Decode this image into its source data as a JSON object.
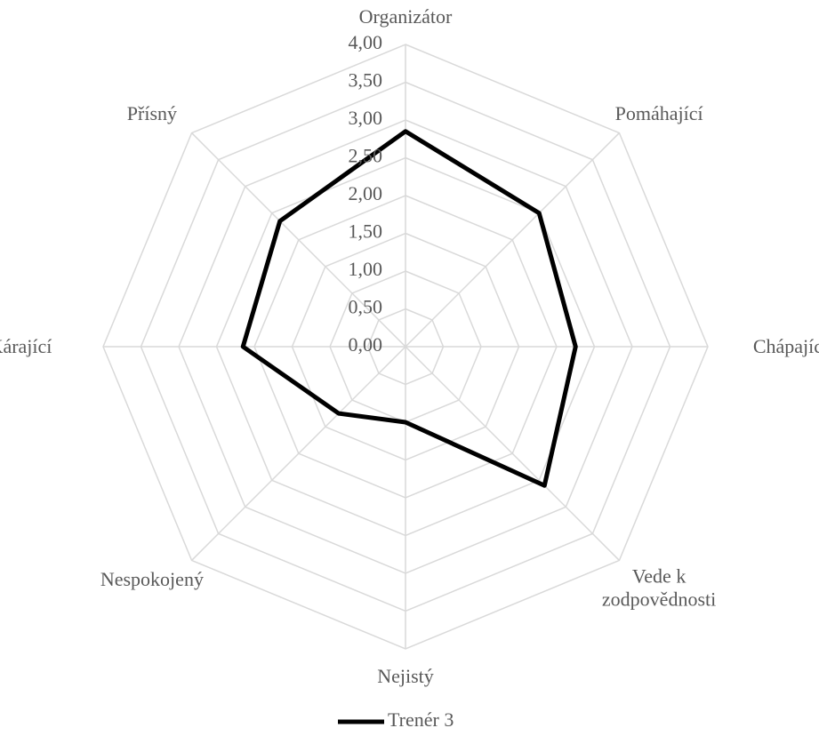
{
  "chart_data": {
    "type": "radar",
    "categories": [
      "Organizátor",
      "Pomáhající",
      "Chápající",
      "Vede k zodpovědnosti",
      "Nejistý",
      "Nespokojený",
      "Kárající",
      "Přísný"
    ],
    "series": [
      {
        "name": "Trenér 3",
        "color": "#000000",
        "values": [
          2.85,
          2.5,
          2.25,
          2.6,
          1.0,
          1.25,
          2.15,
          2.35
        ]
      }
    ],
    "ylim": [
      0,
      4
    ],
    "yticks": [
      {
        "value": 0,
        "label": "0,00"
      },
      {
        "value": 0.5,
        "label": "0,50"
      },
      {
        "value": 1,
        "label": "1,00"
      },
      {
        "value": 1.5,
        "label": "1,50"
      },
      {
        "value": 2,
        "label": "2,00"
      },
      {
        "value": 2.5,
        "label": "2,50"
      },
      {
        "value": 3,
        "label": "3,00"
      },
      {
        "value": 3.5,
        "label": "3,50"
      },
      {
        "value": 4,
        "label": "4,00"
      }
    ],
    "grid": true,
    "legend": "bottom"
  }
}
